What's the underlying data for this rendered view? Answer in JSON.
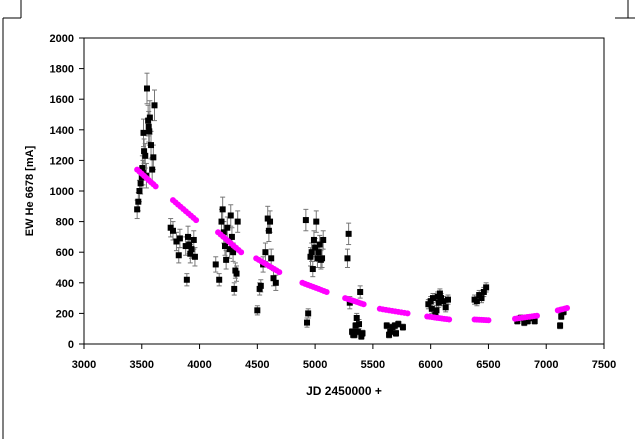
{
  "chart_data": {
    "type": "scatter",
    "title": "",
    "xlabel": "JD 2450000 +",
    "ylabel": "EW He 6678 [mA]",
    "xlim": [
      3000,
      7500
    ],
    "ylim": [
      0,
      2000
    ],
    "xticks": [
      "3000",
      "3500",
      "4000",
      "4500",
      "5000",
      "5500",
      "6000",
      "6500",
      "7000",
      "7500"
    ],
    "yticks": [
      "0",
      "200",
      "400",
      "600",
      "800",
      "1000",
      "1200",
      "1400",
      "1600",
      "1800",
      "2000"
    ],
    "grid": false,
    "legend": "none",
    "colors": {
      "observed": "#000000",
      "model": "#ff00ff",
      "axes": "#000000",
      "errorbars": "#777777"
    },
    "series": [
      {
        "marker": "square",
        "error_bars": true,
        "points": [
          [
            3460,
            880,
            60
          ],
          [
            3470,
            930,
            60
          ],
          [
            3480,
            1000,
            70
          ],
          [
            3490,
            1050,
            70
          ],
          [
            3500,
            1090,
            70
          ],
          [
            3505,
            1150,
            80
          ],
          [
            3510,
            1120,
            80
          ],
          [
            3515,
            1380,
            90
          ],
          [
            3520,
            1260,
            80
          ],
          [
            3530,
            1230,
            80
          ],
          [
            3540,
            1100,
            80
          ],
          [
            3545,
            1670,
            100
          ],
          [
            3555,
            1460,
            100
          ],
          [
            3560,
            1420,
            100
          ],
          [
            3565,
            1390,
            90
          ],
          [
            3570,
            1480,
            110
          ],
          [
            3580,
            1300,
            90
          ],
          [
            3590,
            1140,
            80
          ],
          [
            3600,
            1220,
            80
          ],
          [
            3610,
            1560,
            100
          ],
          [
            3750,
            760,
            60
          ],
          [
            3770,
            740,
            60
          ],
          [
            3800,
            670,
            60
          ],
          [
            3820,
            580,
            50
          ],
          [
            3830,
            690,
            60
          ],
          [
            3880,
            640,
            60
          ],
          [
            3890,
            420,
            40
          ],
          [
            3900,
            700,
            70
          ],
          [
            3910,
            650,
            60
          ],
          [
            3920,
            590,
            60
          ],
          [
            3930,
            620,
            60
          ],
          [
            3950,
            680,
            60
          ],
          [
            3960,
            570,
            60
          ],
          [
            4140,
            520,
            50
          ],
          [
            4170,
            420,
            40
          ],
          [
            4190,
            800,
            80
          ],
          [
            4200,
            880,
            80
          ],
          [
            4210,
            730,
            70
          ],
          [
            4220,
            640,
            60
          ],
          [
            4230,
            550,
            60
          ],
          [
            4240,
            760,
            70
          ],
          [
            4260,
            620,
            60
          ],
          [
            4270,
            840,
            70
          ],
          [
            4280,
            700,
            60
          ],
          [
            4290,
            600,
            60
          ],
          [
            4300,
            360,
            40
          ],
          [
            4310,
            480,
            50
          ],
          [
            4320,
            460,
            50
          ],
          [
            4330,
            800,
            70
          ],
          [
            4500,
            220,
            30
          ],
          [
            4520,
            360,
            40
          ],
          [
            4530,
            380,
            40
          ],
          [
            4550,
            520,
            50
          ],
          [
            4570,
            600,
            60
          ],
          [
            4590,
            820,
            80
          ],
          [
            4600,
            740,
            70
          ],
          [
            4610,
            800,
            70
          ],
          [
            4620,
            560,
            60
          ],
          [
            4640,
            430,
            50
          ],
          [
            4660,
            400,
            50
          ],
          [
            4920,
            810,
            70
          ],
          [
            4930,
            140,
            30
          ],
          [
            4940,
            200,
            30
          ],
          [
            4960,
            570,
            60
          ],
          [
            4970,
            600,
            60
          ],
          [
            4980,
            490,
            50
          ],
          [
            4990,
            680,
            60
          ],
          [
            5000,
            630,
            60
          ],
          [
            5010,
            800,
            70
          ],
          [
            5020,
            560,
            60
          ],
          [
            5030,
            600,
            60
          ],
          [
            5040,
            650,
            60
          ],
          [
            5050,
            550,
            60
          ],
          [
            5060,
            560,
            60
          ],
          [
            5070,
            680,
            60
          ],
          [
            5280,
            560,
            60
          ],
          [
            5290,
            720,
            70
          ],
          [
            5300,
            270,
            40
          ],
          [
            5320,
            80,
            20
          ],
          [
            5330,
            60,
            20
          ],
          [
            5340,
            60,
            20
          ],
          [
            5350,
            120,
            20
          ],
          [
            5360,
            170,
            30
          ],
          [
            5370,
            80,
            20
          ],
          [
            5380,
            130,
            30
          ],
          [
            5390,
            340,
            40
          ],
          [
            5400,
            50,
            20
          ],
          [
            5410,
            70,
            20
          ],
          [
            5620,
            120,
            20
          ],
          [
            5640,
            60,
            20
          ],
          [
            5650,
            80,
            20
          ],
          [
            5670,
            110,
            20
          ],
          [
            5690,
            120,
            20
          ],
          [
            5700,
            70,
            20
          ],
          [
            5720,
            130,
            20
          ],
          [
            5760,
            110,
            20
          ],
          [
            5980,
            260,
            30
          ],
          [
            6000,
            280,
            30
          ],
          [
            6010,
            230,
            30
          ],
          [
            6020,
            300,
            30
          ],
          [
            6040,
            190,
            30
          ],
          [
            6050,
            220,
            30
          ],
          [
            6060,
            310,
            30
          ],
          [
            6070,
            270,
            30
          ],
          [
            6080,
            330,
            30
          ],
          [
            6090,
            300,
            30
          ],
          [
            6110,
            280,
            30
          ],
          [
            6130,
            240,
            30
          ],
          [
            6150,
            290,
            30
          ],
          [
            6380,
            290,
            30
          ],
          [
            6400,
            280,
            30
          ],
          [
            6420,
            320,
            30
          ],
          [
            6440,
            300,
            30
          ],
          [
            6460,
            340,
            30
          ],
          [
            6480,
            370,
            30
          ],
          [
            6750,
            150,
            20
          ],
          [
            6780,
            170,
            20
          ],
          [
            6810,
            140,
            20
          ],
          [
            6840,
            150,
            20
          ],
          [
            6870,
            170,
            20
          ],
          [
            6900,
            150,
            20
          ],
          [
            7120,
            120,
            20
          ],
          [
            7130,
            180,
            20
          ],
          [
            7140,
            220,
            20
          ],
          [
            7150,
            210,
            20
          ]
        ]
      },
      {
        "marker": "circle",
        "segments": [
          {
            "x": [
              3460,
              3620
            ],
            "y": [
              1140,
              1030
            ],
            "n": 9
          },
          {
            "x": [
              3770,
              3970
            ],
            "y": [
              940,
              810
            ],
            "n": 10
          },
          {
            "x": [
              4160,
              4360
            ],
            "y": [
              730,
              600
            ],
            "n": 10
          },
          {
            "x": [
              4490,
              4690
            ],
            "y": [
              560,
              470
            ],
            "n": 10
          },
          {
            "x": [
              4890,
              5100
            ],
            "y": [
              400,
              340
            ],
            "n": 10
          },
          {
            "x": [
              5260,
              5420
            ],
            "y": [
              300,
              260
            ],
            "n": 9
          },
          {
            "x": [
              5560,
              5800
            ],
            "y": [
              230,
              200
            ],
            "n": 10
          },
          {
            "x": [
              5970,
              6160
            ],
            "y": [
              180,
              160
            ],
            "n": 10
          },
          {
            "x": [
              6380,
              6500
            ],
            "y": [
              160,
              155
            ],
            "n": 7
          },
          {
            "x": [
              6730,
              6920
            ],
            "y": [
              165,
              185
            ],
            "n": 10
          },
          {
            "x": [
              7100,
              7180
            ],
            "y": [
              220,
              235
            ],
            "n": 5
          }
        ]
      }
    ]
  }
}
